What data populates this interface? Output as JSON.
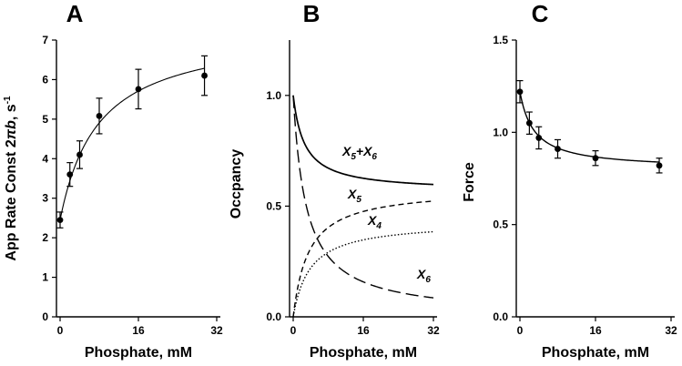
{
  "figure_labels": {
    "a": "A",
    "b": "B",
    "c": "C"
  },
  "chart_data": [
    {
      "panel": "A",
      "type": "scatter",
      "title": "A",
      "xlabel": "Phosphate, mM",
      "ylabel_main": "App Rate Const 2",
      "ylabel_symbol": "πb",
      "ylabel_unit": ", s",
      "ylabel_unit_sup": "-1",
      "xlim": [
        0,
        32
      ],
      "ylim": [
        0,
        7
      ],
      "xticks": [
        0,
        16,
        32
      ],
      "yticks": [
        0,
        1,
        2,
        3,
        4,
        5,
        6,
        7
      ],
      "points": [
        {
          "x": 0,
          "y": 2.45,
          "err": 0.2
        },
        {
          "x": 2,
          "y": 3.6,
          "err": 0.3
        },
        {
          "x": 4,
          "y": 4.1,
          "err": 0.35
        },
        {
          "x": 8,
          "y": 5.08,
          "err": 0.45
        },
        {
          "x": 16,
          "y": 5.76,
          "err": 0.5
        },
        {
          "x": 29.5,
          "y": 6.1,
          "err": 0.5
        }
      ],
      "fit": {
        "model": "hyperbolic",
        "y0": 2.45,
        "amp": 4.85,
        "k": 7.8
      }
    },
    {
      "panel": "B",
      "type": "line",
      "title": "B",
      "xlabel": "Phosphate, mM",
      "ylabel": "Occpancy",
      "xlim": [
        0,
        32
      ],
      "ylim": [
        0,
        1.25
      ],
      "xticks": [
        0,
        16,
        32
      ],
      "yticks": [
        0.0,
        0.5,
        1.0
      ],
      "ytick_labels": [
        "0.0",
        "0.5",
        "1.0"
      ],
      "series": [
        {
          "name": "X5+X6",
          "label_main": "X",
          "label_sub": "5",
          "label_join": "+X",
          "label_sub2": "6",
          "style": "solid",
          "y0": 1.0,
          "yinf": 0.565,
          "k": 2.6
        },
        {
          "name": "X5",
          "label_main": "X",
          "label_sub": "5",
          "style": "dashed",
          "y0": 0.0,
          "yinf": 0.58,
          "k": 3.5
        },
        {
          "name": "X4",
          "label_main": "X",
          "label_sub": "4",
          "style": "dotted",
          "y0": 0.0,
          "yinf": 0.43,
          "k": 3.8
        },
        {
          "name": "X6",
          "label_main": "X",
          "label_sub": "6",
          "style": "longdash",
          "y0": 1.0,
          "yinf": 0.0,
          "k": 3.0
        }
      ]
    },
    {
      "panel": "C",
      "type": "scatter",
      "title": "C",
      "xlabel": "Phosphate, mM",
      "ylabel": "Force",
      "xlim": [
        0,
        32
      ],
      "ylim": [
        0,
        1.5
      ],
      "xticks": [
        0,
        16,
        32
      ],
      "yticks": [
        0.0,
        0.5,
        1.0,
        1.5
      ],
      "ytick_labels": [
        "0.0",
        "0.5",
        "1.0",
        "1.5"
      ],
      "points": [
        {
          "x": 0,
          "y": 1.22,
          "err": 0.06
        },
        {
          "x": 2,
          "y": 1.05,
          "err": 0.06
        },
        {
          "x": 4,
          "y": 0.97,
          "err": 0.06
        },
        {
          "x": 8,
          "y": 0.91,
          "err": 0.05
        },
        {
          "x": 16,
          "y": 0.86,
          "err": 0.04
        },
        {
          "x": 29.5,
          "y": 0.82,
          "err": 0.04
        }
      ],
      "fit": {
        "model": "decay",
        "yinf": 0.8,
        "amp": 0.42,
        "k": 3.0
      }
    }
  ]
}
